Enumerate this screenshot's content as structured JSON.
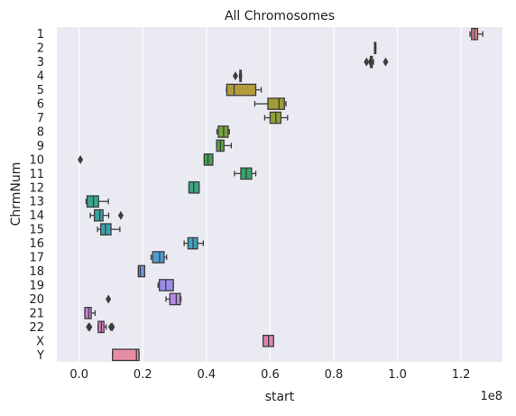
{
  "chart_data": {
    "type": "boxplot",
    "orientation": "horizontal",
    "title": "All Chromosomes",
    "xlabel": "start",
    "ylabel": "ChrmNum",
    "x_scale_label": "1e8",
    "xlim": [
      -0.07,
      1.33
    ],
    "x_ticks": [
      0.0,
      0.2,
      0.4,
      0.6,
      0.8,
      1.0,
      1.2
    ],
    "x_tick_labels": [
      "0.0",
      "0.2",
      "0.4",
      "0.6",
      "0.8",
      "1.0",
      "1.2"
    ],
    "grid": true,
    "legend": "none",
    "colors": {
      "plot_background": "#EAEAF2",
      "grid": "#FFFFFF",
      "box_edge": "#3D3D3D"
    },
    "categories": [
      "1",
      "2",
      "3",
      "4",
      "5",
      "6",
      "7",
      "8",
      "9",
      "10",
      "11",
      "12",
      "13",
      "14",
      "15",
      "16",
      "17",
      "18",
      "19",
      "20",
      "21",
      "22",
      "X",
      "Y"
    ],
    "boxes": [
      {
        "label": "1",
        "whisker_low": 1.228,
        "q1": 1.233,
        "median": 1.242,
        "q3": 1.252,
        "whisker_high": 1.268,
        "outliers": [],
        "color": "#E5868A"
      },
      {
        "label": "2",
        "whisker_low": 0.928,
        "q1": 0.928,
        "median": 0.93,
        "q3": 0.932,
        "whisker_high": 0.932,
        "outliers": [],
        "color": "#D88A62"
      },
      {
        "label": "3",
        "whisker_low": 0.912,
        "q1": 0.915,
        "median": 0.918,
        "q3": 0.921,
        "whisker_high": 0.925,
        "outliers": [
          0.903,
          0.963
        ],
        "color": "#C9925A"
      },
      {
        "label": "4",
        "whisker_low": 0.504,
        "q1": 0.505,
        "median": 0.507,
        "q3": 0.509,
        "whisker_high": 0.51,
        "outliers": [
          0.491
        ],
        "color": "#B99A4C"
      },
      {
        "label": "5",
        "whisker_low": 0.463,
        "q1": 0.464,
        "median": 0.487,
        "q3": 0.555,
        "whisker_high": 0.572,
        "outliers": [],
        "color": "#B39B3C"
      },
      {
        "label": "6",
        "whisker_low": 0.552,
        "q1": 0.593,
        "median": 0.628,
        "q3": 0.645,
        "whisker_high": 0.65,
        "outliers": [],
        "color": "#A39B35"
      },
      {
        "label": "7",
        "whisker_low": 0.583,
        "q1": 0.6,
        "median": 0.618,
        "q3": 0.634,
        "whisker_high": 0.655,
        "outliers": [],
        "color": "#8FA136"
      },
      {
        "label": "8",
        "whisker_low": 0.433,
        "q1": 0.437,
        "median": 0.454,
        "q3": 0.468,
        "whisker_high": 0.472,
        "outliers": [],
        "color": "#76A33B"
      },
      {
        "label": "9",
        "whisker_low": 0.432,
        "q1": 0.432,
        "median": 0.444,
        "q3": 0.455,
        "whisker_high": 0.478,
        "outliers": [],
        "color": "#5AA443"
      },
      {
        "label": "10",
        "whisker_low": 0.393,
        "q1": 0.393,
        "median": 0.405,
        "q3": 0.42,
        "whisker_high": 0.42,
        "outliers": [
          0.004
        ],
        "color": "#3EA553"
      },
      {
        "label": "11",
        "whisker_low": 0.488,
        "q1": 0.508,
        "median": 0.525,
        "q3": 0.542,
        "whisker_high": 0.555,
        "outliers": [],
        "color": "#37A56B"
      },
      {
        "label": "12",
        "whisker_low": 0.345,
        "q1": 0.345,
        "median": 0.36,
        "q3": 0.377,
        "whisker_high": 0.377,
        "outliers": [],
        "color": "#39A680"
      },
      {
        "label": "13",
        "whisker_low": 0.022,
        "q1": 0.025,
        "median": 0.045,
        "q3": 0.061,
        "whisker_high": 0.092,
        "outliers": [],
        "color": "#39A592"
      },
      {
        "label": "14",
        "whisker_low": 0.035,
        "q1": 0.048,
        "median": 0.065,
        "q3": 0.075,
        "whisker_high": 0.093,
        "outliers": [
          0.131
        ],
        "color": "#3AA3A2"
      },
      {
        "label": "15",
        "whisker_low": 0.058,
        "q1": 0.068,
        "median": 0.083,
        "q3": 0.1,
        "whisker_high": 0.128,
        "outliers": [],
        "color": "#3CA2B1"
      },
      {
        "label": "16",
        "whisker_low": 0.33,
        "q1": 0.342,
        "median": 0.358,
        "q3": 0.372,
        "whisker_high": 0.39,
        "outliers": [],
        "color": "#3FA0C0"
      },
      {
        "label": "17",
        "whisker_low": 0.226,
        "q1": 0.231,
        "median": 0.253,
        "q3": 0.267,
        "whisker_high": 0.275,
        "outliers": [],
        "color": "#4C9DD3"
      },
      {
        "label": "18",
        "whisker_low": 0.186,
        "q1": 0.186,
        "median": 0.192,
        "q3": 0.206,
        "whisker_high": 0.206,
        "outliers": [],
        "color": "#6F96E0"
      },
      {
        "label": "19",
        "whisker_low": 0.248,
        "q1": 0.252,
        "median": 0.272,
        "q3": 0.296,
        "whisker_high": 0.296,
        "outliers": [],
        "color": "#998DE7"
      },
      {
        "label": "20",
        "whisker_low": 0.273,
        "q1": 0.285,
        "median": 0.305,
        "q3": 0.318,
        "whisker_high": 0.32,
        "outliers": [
          0.092
        ],
        "color": "#B787E5"
      },
      {
        "label": "21",
        "whisker_low": 0.018,
        "q1": 0.018,
        "median": 0.03,
        "q3": 0.038,
        "whisker_high": 0.05,
        "outliers": [],
        "color": "#CA80DC"
      },
      {
        "label": "22",
        "whisker_low": 0.06,
        "q1": 0.06,
        "median": 0.07,
        "q3": 0.078,
        "whisker_high": 0.085,
        "outliers": [
          0.03,
          0.033,
          0.1,
          0.104
        ],
        "color": "#D97FC8"
      },
      {
        "label": "X",
        "whisker_low": 0.578,
        "q1": 0.578,
        "median": 0.595,
        "q3": 0.611,
        "whisker_high": 0.611,
        "outliers": [],
        "color": "#E084B0"
      },
      {
        "label": "Y",
        "whisker_low": 0.105,
        "q1": 0.105,
        "median": 0.18,
        "q3": 0.188,
        "whisker_high": 0.188,
        "outliers": [],
        "color": "#E68DA4"
      }
    ]
  }
}
